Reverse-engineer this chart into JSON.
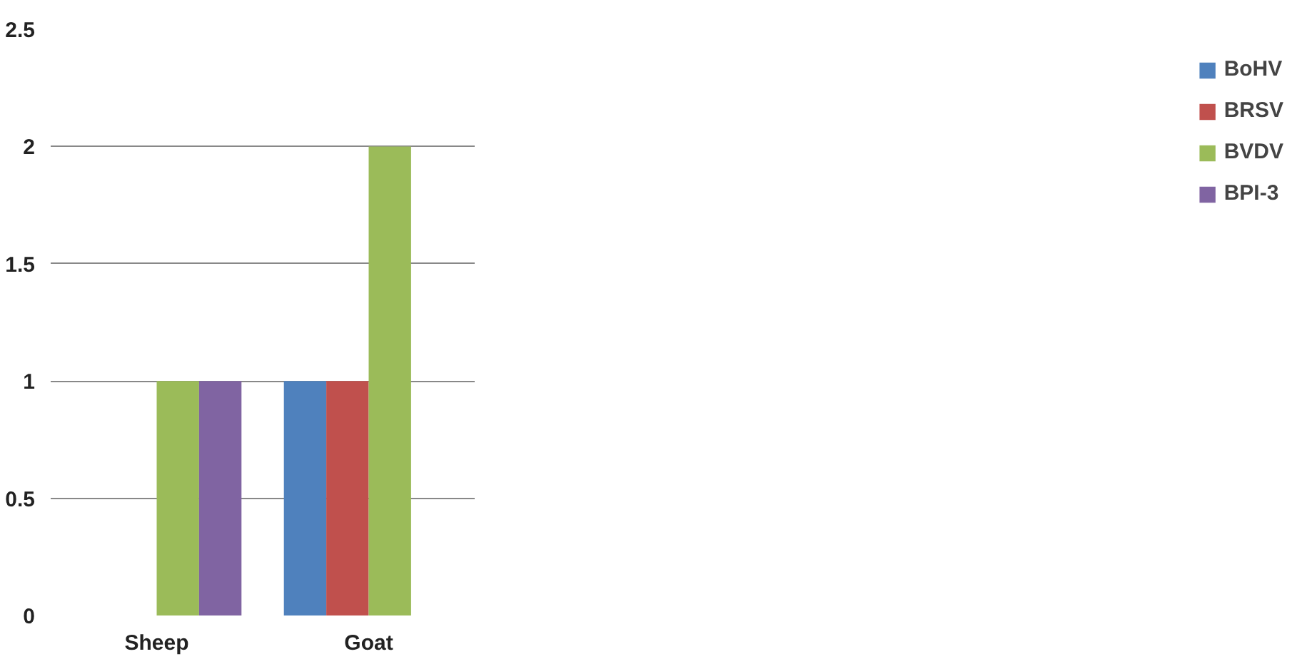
{
  "chart_data": {
    "type": "bar",
    "categories": [
      "Sheep",
      "Goat"
    ],
    "series": [
      {
        "name": "BoHV",
        "color": "#4f81bd",
        "values": [
          0,
          1
        ]
      },
      {
        "name": "BRSV",
        "color": "#c0504d",
        "values": [
          0,
          1
        ]
      },
      {
        "name": "BVDV",
        "color": "#9bbb59",
        "values": [
          1,
          2
        ]
      },
      {
        "name": "BPI-3",
        "color": "#8064a2",
        "values": [
          1,
          0
        ]
      }
    ],
    "ylim": [
      0,
      2.5
    ],
    "yticks": [
      0,
      0.5,
      1,
      1.5,
      2,
      2.5
    ],
    "grid": "y",
    "legend": "right"
  }
}
